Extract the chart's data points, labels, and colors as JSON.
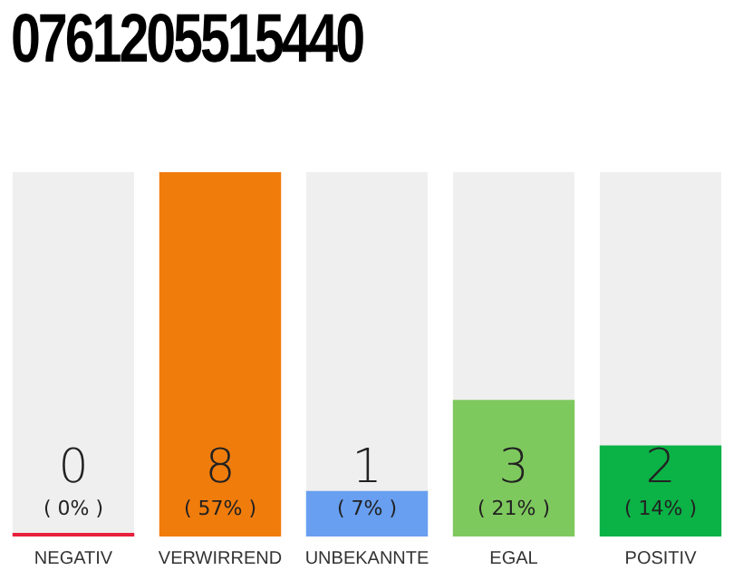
{
  "chart_data": {
    "type": "bar",
    "title": "0761205515440",
    "categories": [
      "NEGATIV",
      "VERWIRREND",
      "UNBEKANNTE",
      "EGAL",
      "POSITIV"
    ],
    "values": [
      0,
      8,
      1,
      3,
      2
    ],
    "colors": [
      "#e8203c",
      "#f07c0c",
      "#689ff0",
      "#7ec95e",
      "#0bb246"
    ],
    "data_labels": true,
    "annotations": [
      "( 0% )",
      "( 57% )",
      "( 7% )",
      "( 21% )",
      "( 14% )"
    ],
    "grid": false,
    "legend": false
  }
}
